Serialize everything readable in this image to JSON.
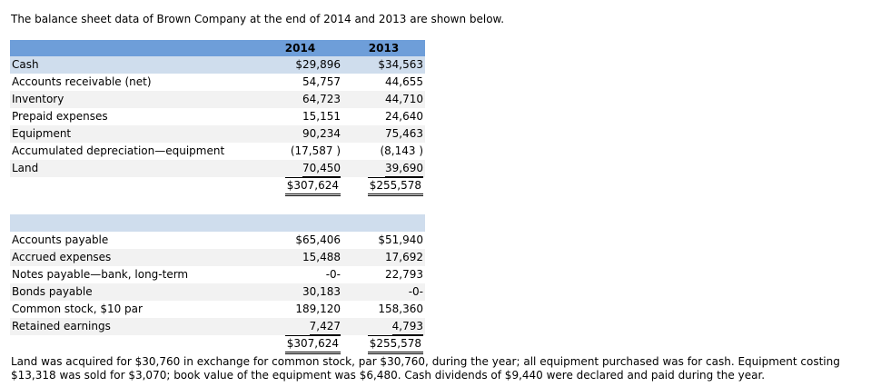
{
  "intro": "The balance sheet data of Brown Company at the end of 2014 and 2013 are shown below.",
  "headers": [
    "",
    "2014",
    "2013"
  ],
  "assets": [
    {
      "label": "Cash",
      "y2014": "$29,896",
      "y2013": "$34,563"
    },
    {
      "label": "Accounts receivable (net)",
      "y2014": "54,757",
      "y2013": "44,655"
    },
    {
      "label": "Inventory",
      "y2014": "64,723",
      "y2013": "44,710"
    },
    {
      "label": "Prepaid expenses",
      "y2014": "15,151",
      "y2013": "24,640"
    },
    {
      "label": "Equipment",
      "y2014": "90,234",
      "y2013": "75,463"
    },
    {
      "label": "Accumulated depreciation—equipment",
      "y2014": "(17,587 )",
      "y2013": "(8,143 )"
    },
    {
      "label": "Land",
      "y2014": "70,450",
      "y2013": "39,690"
    }
  ],
  "assets_total": {
    "y2014": "$307,624",
    "y2013": "$255,578"
  },
  "liabilities": [
    {
      "label": "Accounts payable",
      "y2014": "$65,406",
      "y2013": "$51,940"
    },
    {
      "label": "Accrued expenses",
      "y2014": "15,488",
      "y2013": "17,692"
    },
    {
      "label": "Notes payable—bank, long-term",
      "y2014": "-0-",
      "y2013": "22,793"
    },
    {
      "label": "Bonds payable",
      "y2014": "30,183",
      "y2013": "-0-"
    },
    {
      "label": "Common stock, $10 par",
      "y2014": "189,120",
      "y2013": "158,360"
    },
    {
      "label": "Retained earnings",
      "y2014": "7,427",
      "y2013": "4,793"
    }
  ],
  "liabilities_total": {
    "y2014": "$307,624",
    "y2013": "$255,578"
  },
  "note": "Land was acquired for $30,760 in exchange for common stock, par $30,760, during the year; all equipment purchased was for cash. Equipment costing $13,318 was sold for $3,070; book value of the equipment was $6,480. Cash dividends of $9,440 were declared and paid during the year."
}
